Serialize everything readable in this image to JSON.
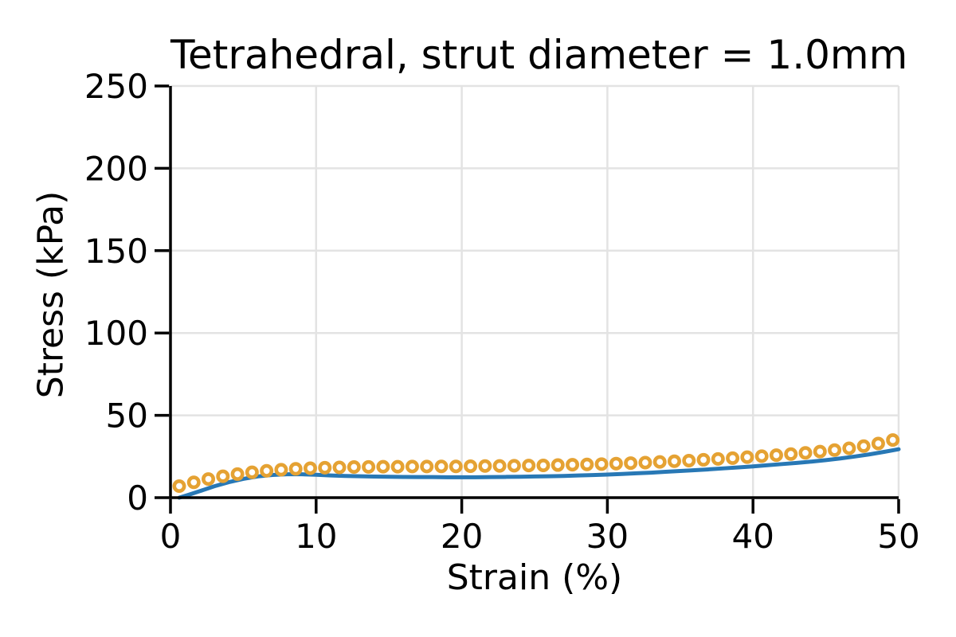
{
  "figure": {
    "background": "#ffffff"
  },
  "chart_data": {
    "type": "line",
    "title": "Tetrahedral, strut diameter = 1.0mm",
    "xlabel": "Strain (%)",
    "ylabel": "Stress (kPa)",
    "xlim": [
      0,
      50
    ],
    "ylim": [
      0,
      250
    ],
    "xticks": [
      0,
      10,
      20,
      30,
      40,
      50
    ],
    "yticks": [
      0,
      50,
      100,
      150,
      200,
      250
    ],
    "grid": true,
    "legend": "none",
    "styles": {
      "grid_color": "#e3e3e3",
      "axis_color": "#000000",
      "tick_font_size": 42
    },
    "series": [
      {
        "name": "line-series",
        "type": "line",
        "color": "#2878b5",
        "line_width": 5,
        "points": [
          [
            0.6,
            0
          ],
          [
            1.2,
            1.6
          ],
          [
            2,
            3.9
          ],
          [
            3,
            6.9
          ],
          [
            4,
            9.4
          ],
          [
            5,
            11.4
          ],
          [
            6,
            12.9
          ],
          [
            7,
            13.8
          ],
          [
            8,
            14.2
          ],
          [
            9,
            14.2
          ],
          [
            10,
            13.9
          ],
          [
            11,
            13.5
          ],
          [
            12,
            13.2
          ],
          [
            13,
            13.0
          ],
          [
            14,
            12.8
          ],
          [
            15,
            12.7
          ],
          [
            16,
            12.6
          ],
          [
            17,
            12.5
          ],
          [
            18,
            12.5
          ],
          [
            19,
            12.4
          ],
          [
            20,
            12.4
          ],
          [
            21,
            12.4
          ],
          [
            22,
            12.5
          ],
          [
            23,
            12.6
          ],
          [
            24,
            12.7
          ],
          [
            25,
            12.9
          ],
          [
            26,
            13.0
          ],
          [
            27,
            13.2
          ],
          [
            28,
            13.5
          ],
          [
            29,
            13.7
          ],
          [
            30,
            14.0
          ],
          [
            31,
            14.4
          ],
          [
            32,
            14.8
          ],
          [
            33,
            15.2
          ],
          [
            34,
            15.7
          ],
          [
            35,
            16.2
          ],
          [
            36,
            16.7
          ],
          [
            37,
            17.2
          ],
          [
            38,
            17.8
          ],
          [
            39,
            18.4
          ],
          [
            40,
            19.0
          ],
          [
            41,
            19.7
          ],
          [
            42,
            20.4
          ],
          [
            43,
            21.1
          ],
          [
            44,
            21.9
          ],
          [
            45,
            22.8
          ],
          [
            46,
            23.8
          ],
          [
            47,
            25.0
          ],
          [
            48,
            26.3
          ],
          [
            49,
            27.8
          ],
          [
            50,
            29.4
          ]
        ]
      },
      {
        "name": "marker-series",
        "type": "scatter",
        "marker": "open-circle",
        "color": "#e5a233",
        "marker_fill": "#ffffff",
        "marker_radius": 6.2,
        "marker_stroke_width": 4.6,
        "points": [
          [
            0.6,
            7.0
          ],
          [
            1.6,
            9.3
          ],
          [
            2.6,
            11.3
          ],
          [
            3.6,
            13.0
          ],
          [
            4.6,
            14.3
          ],
          [
            5.6,
            15.4
          ],
          [
            6.6,
            16.3
          ],
          [
            7.6,
            17.0
          ],
          [
            8.6,
            17.5
          ],
          [
            9.6,
            17.9
          ],
          [
            10.6,
            18.2
          ],
          [
            11.6,
            18.4
          ],
          [
            12.6,
            18.6
          ],
          [
            13.6,
            18.7
          ],
          [
            14.6,
            18.8
          ],
          [
            15.6,
            18.8
          ],
          [
            16.6,
            18.9
          ],
          [
            17.6,
            18.9
          ],
          [
            18.6,
            19.0
          ],
          [
            19.6,
            19.0
          ],
          [
            20.6,
            19.1
          ],
          [
            21.6,
            19.2
          ],
          [
            22.6,
            19.3
          ],
          [
            23.6,
            19.4
          ],
          [
            24.6,
            19.5
          ],
          [
            25.6,
            19.6
          ],
          [
            26.6,
            19.8
          ],
          [
            27.6,
            20.0
          ],
          [
            28.6,
            20.2
          ],
          [
            29.6,
            20.4
          ],
          [
            30.6,
            20.7
          ],
          [
            31.6,
            21.0
          ],
          [
            32.6,
            21.3
          ],
          [
            33.6,
            21.7
          ],
          [
            34.6,
            22.1
          ],
          [
            35.6,
            22.5
          ],
          [
            36.6,
            23.0
          ],
          [
            37.6,
            23.5
          ],
          [
            38.6,
            24.0
          ],
          [
            39.6,
            24.6
          ],
          [
            40.6,
            25.2
          ],
          [
            41.6,
            25.8
          ],
          [
            42.6,
            26.5
          ],
          [
            43.6,
            27.2
          ],
          [
            44.6,
            28.0
          ],
          [
            45.6,
            28.9
          ],
          [
            46.6,
            30.0
          ],
          [
            47.6,
            31.3
          ],
          [
            48.6,
            32.9
          ],
          [
            49.6,
            35.0
          ]
        ]
      }
    ]
  }
}
